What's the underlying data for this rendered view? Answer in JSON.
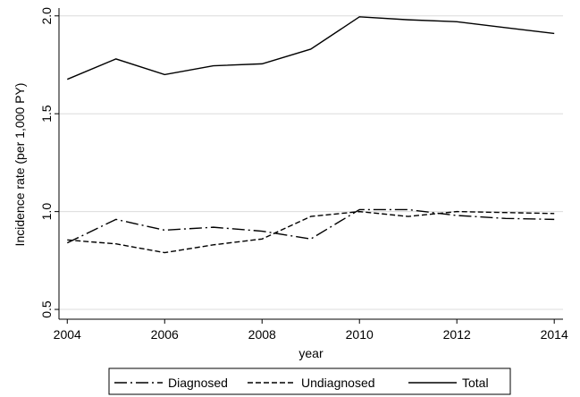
{
  "chart_data": {
    "type": "line",
    "x_label": "year",
    "y_label": "Incidence rate (per 1,000 PY)",
    "x": [
      2004,
      2005,
      2006,
      2007,
      2008,
      2009,
      2010,
      2011,
      2012,
      2013,
      2014
    ],
    "series": [
      {
        "name": "Diagnosed",
        "color": "#000000",
        "linestyle": "dashdot",
        "values": [
          0.84,
          0.96,
          0.905,
          0.92,
          0.9,
          0.86,
          1.01,
          1.01,
          0.98,
          0.965,
          0.96
        ]
      },
      {
        "name": "Undiagnosed",
        "color": "#000000",
        "linestyle": "dashed",
        "values": [
          0.855,
          0.835,
          0.79,
          0.83,
          0.86,
          0.975,
          1.0,
          0.975,
          1.0,
          0.995,
          0.99
        ]
      },
      {
        "name": "Total",
        "color": "#000000",
        "linestyle": "solid",
        "values": [
          1.676,
          1.78,
          1.7,
          1.745,
          1.755,
          1.83,
          1.995,
          1.98,
          1.97,
          1.94,
          1.91
        ]
      }
    ],
    "xlim": [
      2003.83,
      2014.18
    ],
    "xticks": [
      2004,
      2006,
      2008,
      2010,
      2012,
      2014
    ],
    "ylim": [
      0.45,
      2.04
    ],
    "yticks": [
      {
        "value": 0.5,
        "label": "0.5"
      },
      {
        "value": 1.0,
        "label": "1.0"
      },
      {
        "value": 1.5,
        "label": "1.5"
      },
      {
        "value": 2.0,
        "label": "2.0"
      }
    ],
    "grid": true,
    "legend": "bottom"
  }
}
